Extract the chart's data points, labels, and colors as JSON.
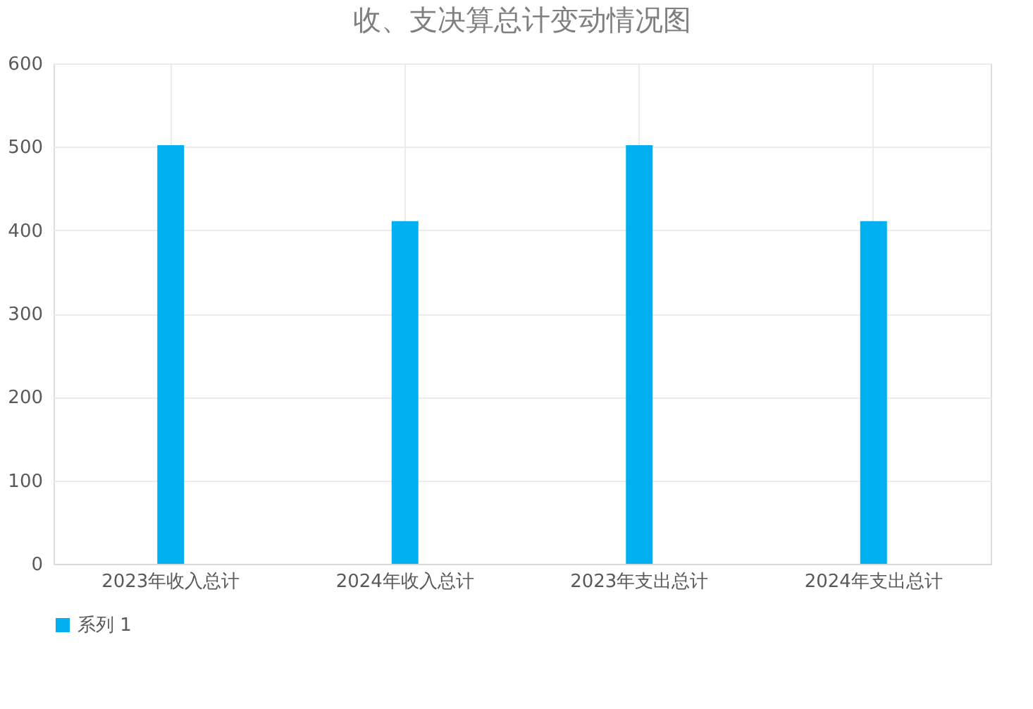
{
  "chart_data": {
    "type": "bar",
    "title": "收、支决算总计变动情况图",
    "categories": [
      "2023年收入总计",
      "2024年收入总计",
      "2023年支出总计",
      "2024年支出总计"
    ],
    "series": [
      {
        "name": "系列 1",
        "color": "#00b0f0",
        "values": [
          502,
          411,
          502,
          411
        ]
      }
    ],
    "ylim": [
      0,
      600
    ],
    "yticks": [
      0,
      100,
      200,
      300,
      400,
      500,
      600
    ],
    "grid": true,
    "legend": "bottom"
  }
}
